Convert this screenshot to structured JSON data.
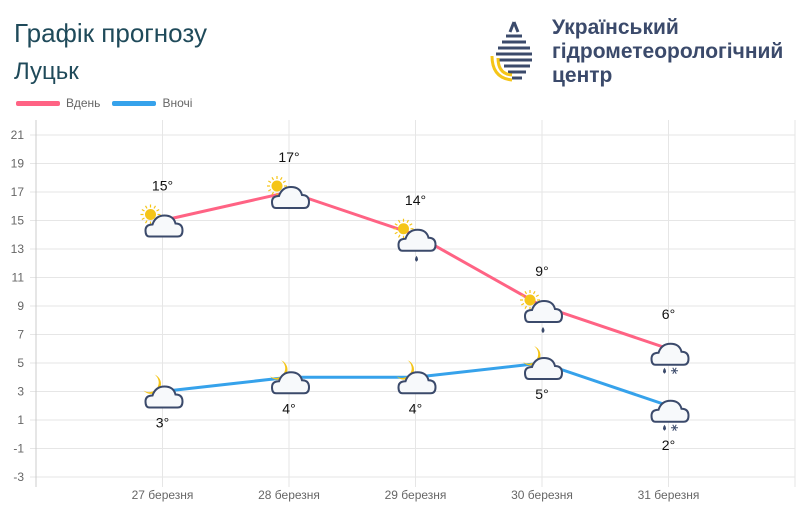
{
  "header": {
    "title": "Графік прогнозу",
    "city": "Луцьк",
    "org_name": "Український\nгідрометеорологічний\nцентр"
  },
  "chart_data": {
    "type": "line",
    "categories": [
      "27 березня",
      "28 березня",
      "29 березня",
      "30 березня",
      "31 березня"
    ],
    "series": [
      {
        "name": "Вдень",
        "color": "#ff6384",
        "values": [
          15,
          17,
          14,
          9,
          6
        ],
        "labels": [
          "15°",
          "17°",
          "14°",
          "9°",
          "6°"
        ],
        "icons": [
          "partly-cloudy-day-icon",
          "partly-cloudy-day-icon",
          "partly-cloudy-day-rain-icon",
          "partly-cloudy-day-rain-icon",
          "cloud-rain-snow-icon"
        ]
      },
      {
        "name": "Вночі",
        "color": "#36a2eb",
        "values": [
          3,
          4,
          4,
          5,
          2
        ],
        "labels": [
          "3°",
          "4°",
          "4°",
          "5°",
          "2°"
        ],
        "icons": [
          "partly-cloudy-night-icon",
          "partly-cloudy-night-icon",
          "partly-cloudy-night-icon",
          "partly-cloudy-night-icon",
          "cloud-rain-snow-icon"
        ]
      }
    ],
    "yticks": [
      21,
      19,
      17,
      15,
      13,
      11,
      9,
      7,
      5,
      3,
      1,
      -1,
      -3
    ],
    "ylim": [
      -3,
      21
    ],
    "grid": true,
    "legend": "top-left"
  }
}
